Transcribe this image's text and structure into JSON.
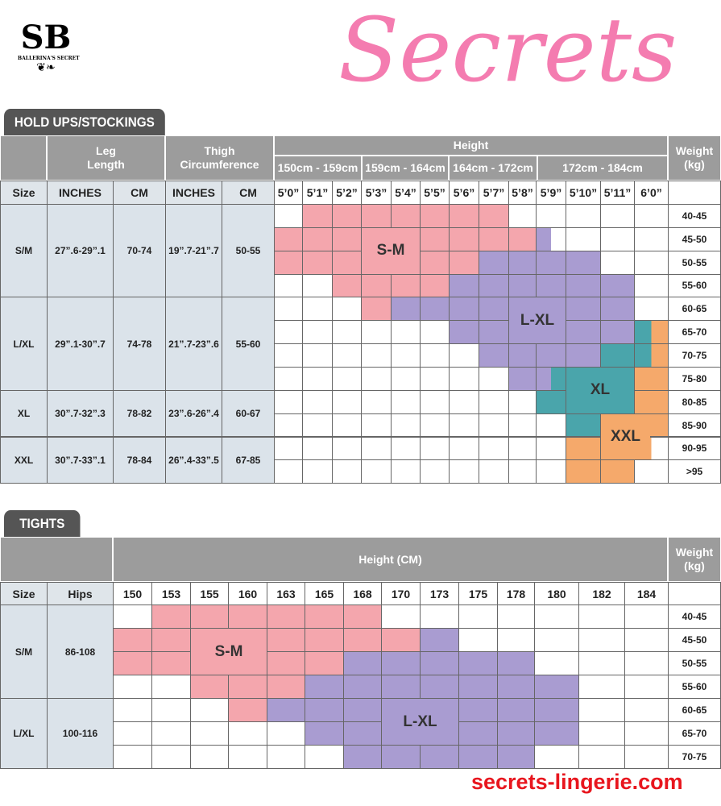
{
  "brand": {
    "logo_text": "SB",
    "logo_caption": "BALLERINA'S SECRET"
  },
  "colors": {
    "P": "#f4a6ad",
    "L": "#a99cd1",
    "T": "#4aa5ab",
    "O": "#f5a96b",
    "W": "#ffffff"
  },
  "stockings": {
    "tab": "HOLD UPS/STOCKINGS",
    "leg_length": "Leg Length",
    "thigh": "Thigh Circumference",
    "height": "Height",
    "weight": "Weight (kg)",
    "ranges": [
      "150cm - 159cm",
      "159cm - 164cm",
      "164cm - 172cm",
      "172cm - 184cm"
    ],
    "cols": [
      "Size",
      "INCHES",
      "CM",
      "INCHES",
      "CM"
    ],
    "heights": [
      "5’0”",
      "5’1”",
      "5’2”",
      "5’3”",
      "5’4”",
      "5’5”",
      "5’6”",
      "5’7”",
      "5’8”",
      "5’9”",
      "5’10”",
      "5’11”",
      "6’0”"
    ],
    "weights": [
      "40-45",
      "45-50",
      "50-55",
      "55-60",
      "60-65",
      "65-70",
      "70-75",
      "75-80",
      "80-85",
      "85-90",
      "90-95",
      ">95"
    ],
    "sizes": [
      {
        "size": "S/M",
        "leg_in": "27”.6-29”.1",
        "leg_cm": "70-74",
        "thigh_in": "19”.7-21”.7",
        "thigh_cm": "50-55"
      },
      {
        "size": "L/XL",
        "leg_in": "29”.1-30”.7",
        "leg_cm": "74-78",
        "thigh_in": "21”.7-23”.6",
        "thigh_cm": "55-60"
      },
      {
        "size": "XL",
        "leg_in": "30”.7-32”.3",
        "leg_cm": "78-82",
        "thigh_in": "23”.6-26”.4",
        "thigh_cm": "60-67"
      },
      {
        "size": "XXL",
        "leg_in": "30”.7-33”.1",
        "leg_cm": "78-84",
        "thigh_in": "26”.4-33”.5",
        "thigh_cm": "67-85"
      }
    ],
    "grid": [
      [
        "W",
        "P",
        "P",
        "P",
        "P",
        "P",
        "P",
        "P",
        "W",
        "W",
        "W",
        "W",
        "W"
      ],
      [
        "P",
        "P",
        "P",
        "P",
        "P",
        "P",
        "P",
        "P",
        "P",
        "LW",
        "W",
        "W",
        "W"
      ],
      [
        "P",
        "P",
        "P",
        "P",
        "P",
        "P",
        "P",
        "L",
        "L",
        "L",
        "L",
        "W",
        "W"
      ],
      [
        "W",
        "W",
        "P",
        "P",
        "P",
        "P",
        "L",
        "L",
        "L",
        "L",
        "L",
        "L",
        "W"
      ],
      [
        "W",
        "W",
        "W",
        "P",
        "L",
        "L",
        "L",
        "L",
        "L",
        "L",
        "L",
        "L",
        "W"
      ],
      [
        "W",
        "W",
        "W",
        "W",
        "W",
        "W",
        "L",
        "L",
        "L",
        "L",
        "L",
        "L",
        "TO"
      ],
      [
        "W",
        "W",
        "W",
        "W",
        "W",
        "W",
        "W",
        "L",
        "L",
        "L",
        "L",
        "T",
        "TO"
      ],
      [
        "W",
        "W",
        "W",
        "W",
        "W",
        "W",
        "W",
        "W",
        "L",
        "LT",
        "T",
        "T",
        "O"
      ],
      [
        "W",
        "W",
        "W",
        "W",
        "W",
        "W",
        "W",
        "W",
        "W",
        "T",
        "T",
        "T",
        "O"
      ],
      [
        "W",
        "W",
        "W",
        "W",
        "W",
        "W",
        "W",
        "W",
        "W",
        "W",
        "T",
        "O",
        "O"
      ],
      [
        "W",
        "W",
        "W",
        "W",
        "W",
        "W",
        "W",
        "W",
        "W",
        "W",
        "O",
        "O",
        "OW"
      ],
      [
        "W",
        "W",
        "W",
        "W",
        "W",
        "W",
        "W",
        "W",
        "W",
        "W",
        "O",
        "O",
        "W"
      ]
    ],
    "labels": [
      {
        "text": "S-M",
        "color": "P"
      },
      {
        "text": "L-XL",
        "color": "L"
      },
      {
        "text": "XL",
        "color": "T"
      },
      {
        "text": "XXL",
        "color": "O"
      }
    ]
  },
  "tights": {
    "tab": "TIGHTS",
    "height": "Height (CM)",
    "weight": "Weight (kg)",
    "cols": [
      "Size",
      "Hips"
    ],
    "heights": [
      "150",
      "153",
      "155",
      "160",
      "163",
      "165",
      "168",
      "170",
      "173",
      "175",
      "178",
      "180",
      "182",
      "184"
    ],
    "weights": [
      "40-45",
      "45-50",
      "50-55",
      "55-60",
      "60-65",
      "65-70",
      "70-75"
    ],
    "sizes": [
      {
        "size": "S/M",
        "hips": "86-108"
      },
      {
        "size": "L/XL",
        "hips": "100-116"
      }
    ],
    "grid": [
      [
        "W",
        "P",
        "P",
        "P",
        "P",
        "P",
        "P",
        "W",
        "W",
        "W",
        "W",
        "W",
        "W",
        "W"
      ],
      [
        "P",
        "P",
        "P",
        "P",
        "P",
        "P",
        "P",
        "P",
        "L",
        "W",
        "W",
        "W",
        "W",
        "W"
      ],
      [
        "P",
        "P",
        "P",
        "P",
        "P",
        "P",
        "L",
        "L",
        "L",
        "L",
        "L",
        "W",
        "W",
        "W"
      ],
      [
        "W",
        "W",
        "P",
        "P",
        "P",
        "L",
        "L",
        "L",
        "L",
        "L",
        "L",
        "L",
        "W",
        "W"
      ],
      [
        "W",
        "W",
        "W",
        "P",
        "L",
        "L",
        "L",
        "L",
        "L",
        "L",
        "L",
        "L",
        "W",
        "W"
      ],
      [
        "W",
        "W",
        "W",
        "W",
        "W",
        "L",
        "L",
        "L",
        "L",
        "L",
        "L",
        "L",
        "W",
        "W"
      ],
      [
        "W",
        "W",
        "W",
        "W",
        "W",
        "W",
        "L",
        "L",
        "L",
        "L",
        "L",
        "W",
        "W",
        "W"
      ]
    ],
    "labels": [
      {
        "text": "S-M",
        "color": "P"
      },
      {
        "text": "L-XL",
        "color": "L"
      }
    ]
  },
  "watermark": {
    "script": "Secrets",
    "site": "secrets-lingerie.com"
  }
}
